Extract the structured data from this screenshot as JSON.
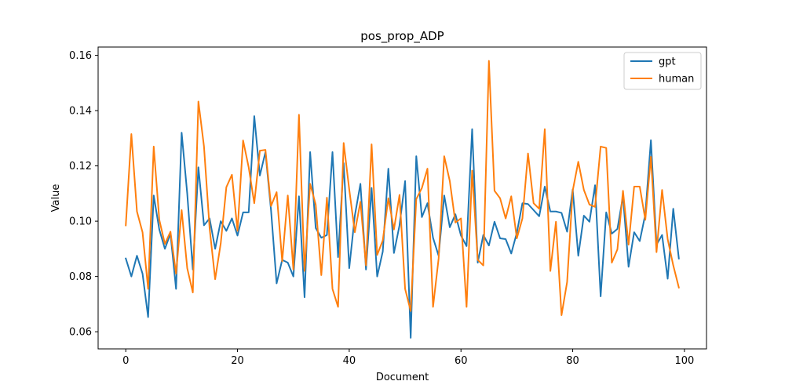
{
  "chart_data": {
    "type": "line",
    "title": "pos_prop_ADP",
    "xlabel": "Document",
    "ylabel": "Value",
    "xlim": [
      -4.95,
      103.95
    ],
    "ylim": [
      0.0538,
      0.163
    ],
    "xticks": [
      0,
      20,
      40,
      60,
      80,
      100
    ],
    "yticks": [
      0.06,
      0.08,
      0.1,
      0.12,
      0.14,
      0.16
    ],
    "xtick_labels": [
      "0",
      "20",
      "40",
      "60",
      "80",
      "100"
    ],
    "ytick_labels": [
      "0.06",
      "0.08",
      "0.10",
      "0.12",
      "0.14",
      "0.16"
    ],
    "grid": false,
    "legend_position": "top-right",
    "x": [
      0,
      1,
      2,
      3,
      4,
      5,
      6,
      7,
      8,
      9,
      10,
      11,
      12,
      13,
      14,
      15,
      16,
      17,
      18,
      19,
      20,
      21,
      22,
      23,
      24,
      25,
      26,
      27,
      28,
      29,
      30,
      31,
      32,
      33,
      34,
      35,
      36,
      37,
      38,
      39,
      40,
      41,
      42,
      43,
      44,
      45,
      46,
      47,
      48,
      49,
      50,
      51,
      52,
      53,
      54,
      55,
      56,
      57,
      58,
      59,
      60,
      61,
      62,
      63,
      64,
      65,
      66,
      67,
      68,
      69,
      70,
      71,
      72,
      73,
      74,
      75,
      76,
      77,
      78,
      79,
      80,
      81,
      82,
      83,
      84,
      85,
      86,
      87,
      88,
      89,
      90,
      91,
      92,
      93,
      94,
      95,
      96,
      97,
      98,
      99
    ],
    "series": [
      {
        "name": "gpt",
        "color": "#1f77b4",
        "values": [
          0.0865,
          0.08,
          0.0875,
          0.081,
          0.0653,
          0.1093,
          0.097,
          0.09,
          0.0955,
          0.0755,
          0.132,
          0.11,
          0.0825,
          0.1195,
          0.0985,
          0.101,
          0.09,
          0.1,
          0.0965,
          0.101,
          0.0948,
          0.1032,
          0.1032,
          0.138,
          0.1165,
          0.125,
          0.104,
          0.0775,
          0.086,
          0.085,
          0.08,
          0.109,
          0.0725,
          0.125,
          0.0975,
          0.094,
          0.095,
          0.125,
          0.087,
          0.121,
          0.083,
          0.102,
          0.1135,
          0.0825,
          0.112,
          0.08,
          0.089,
          0.119,
          0.0885,
          0.0985,
          0.1145,
          0.0578,
          0.1235,
          0.1015,
          0.1065,
          0.094,
          0.0875,
          0.1093,
          0.0978,
          0.1025,
          0.0948,
          0.091,
          0.1333,
          0.085,
          0.095,
          0.0912,
          0.0998,
          0.0938,
          0.0935,
          0.0883,
          0.0958,
          0.1065,
          0.1062,
          0.104,
          0.1018,
          0.1125,
          0.1035,
          0.1035,
          0.103,
          0.0962,
          0.1115,
          0.0875,
          0.102,
          0.0998,
          0.113,
          0.0728,
          0.1032,
          0.0955,
          0.0972,
          0.109,
          0.0835,
          0.096,
          0.0928,
          0.1025,
          0.1293,
          0.0915,
          0.095,
          0.0792,
          0.1045,
          0.0865
        ]
      },
      {
        "name": "human",
        "color": "#ff7f0e",
        "values": [
          0.0985,
          0.1315,
          0.1035,
          0.096,
          0.0755,
          0.127,
          0.1005,
          0.0918,
          0.0962,
          0.081,
          0.104,
          0.083,
          0.0742,
          0.1433,
          0.127,
          0.0975,
          0.079,
          0.092,
          0.1123,
          0.1168,
          0.0965,
          0.1292,
          0.1195,
          0.1065,
          0.1255,
          0.1258,
          0.1055,
          0.1105,
          0.0855,
          0.1093,
          0.0825,
          0.1385,
          0.082,
          0.1135,
          0.106,
          0.0805,
          0.1085,
          0.0755,
          0.069,
          0.1283,
          0.1115,
          0.096,
          0.107,
          0.084,
          0.1278,
          0.0878,
          0.093,
          0.1083,
          0.097,
          0.1095,
          0.0755,
          0.0675,
          0.108,
          0.112,
          0.119,
          0.069,
          0.0865,
          0.1235,
          0.1145,
          0.0995,
          0.101,
          0.069,
          0.1183,
          0.086,
          0.084,
          0.158,
          0.111,
          0.1083,
          0.101,
          0.109,
          0.0938,
          0.101,
          0.1245,
          0.1065,
          0.1045,
          0.1333,
          0.082,
          0.0998,
          0.066,
          0.078,
          0.111,
          0.1215,
          0.1113,
          0.106,
          0.1052,
          0.127,
          0.1265,
          0.085,
          0.0898,
          0.111,
          0.0915,
          0.1125,
          0.1125,
          0.1005,
          0.1233,
          0.0888,
          0.1113,
          0.0935,
          0.084,
          0.076
        ]
      }
    ]
  }
}
